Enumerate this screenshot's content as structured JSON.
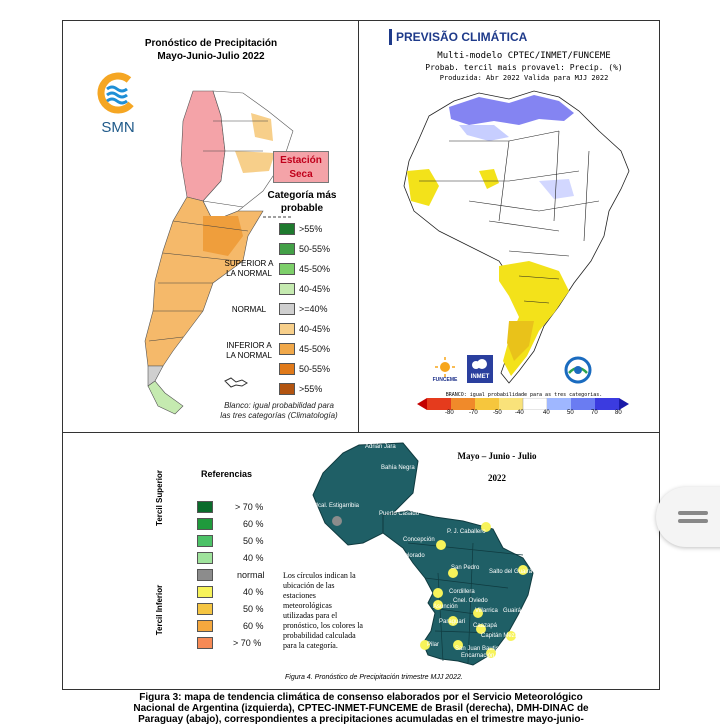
{
  "argentina": {
    "title_line1": "Pronóstico de Precipitación",
    "title_line2": "Mayo-Junio-Julio 2022",
    "logo_text": "SMN",
    "dry_season_line1": "Estación",
    "dry_season_line2": "Seca",
    "category_title_line1": "Categoría más",
    "category_title_line2": "probable",
    "group_superior_line1": "SUPERIOR A",
    "group_superior_line2": "LA NORMAL",
    "group_normal": "NORMAL",
    "group_inferior_line1": "INFERIOR A",
    "group_inferior_line2": "LA NORMAL",
    "legend": [
      {
        "label": ">55%",
        "color": "#1e7a2e"
      },
      {
        "label": "50-55%",
        "color": "#43a047"
      },
      {
        "label": "45-50%",
        "color": "#7dcf6a"
      },
      {
        "label": "40-45%",
        "color": "#c5eab0"
      },
      {
        "label": ">=40%",
        "color": "#cfcfcf"
      },
      {
        "label": "40-45%",
        "color": "#f7cf8a"
      },
      {
        "label": "45-50%",
        "color": "#f0a84a"
      },
      {
        "label": "50-55%",
        "color": "#e07a1a"
      },
      {
        "label": ">55%",
        "color": "#b25410"
      }
    ],
    "note_line1": "Blanco: igual probabilidad para",
    "note_line2": "las tres categorías (Climatología)",
    "colors": {
      "dry": "#f4a3a8",
      "below": "#f5b96a",
      "normal": "#cfcfcf",
      "above": "#c5eab0"
    }
  },
  "brazil": {
    "title": "PREVISÃO CLIMÁTICA",
    "subtitle1": "Multi-modelo CPTEC/INMET/FUNCEME",
    "subtitle2": "Probab. tercil mais provavel: Precip. (%)",
    "subtitle3": "Produzida: Abr 2022   Valida para MJJ 2022",
    "logo_funceme": "FUNCEME",
    "logo_inmet": "INMET",
    "colorbar_caption": "BRANCO: igual probabilidade para as tres categorias.",
    "colorbar_ticks": [
      "-80",
      "-70",
      "-50",
      "-40",
      "40",
      "50",
      "70",
      "80"
    ],
    "colorbar_colors": [
      "#c40000",
      "#e53b1d",
      "#f08a2a",
      "#f6c63d",
      "#ffffff",
      "#9fb7ff",
      "#6a7cf2",
      "#3b3be0",
      "#1a1aa8"
    ],
    "colors": {
      "below": "#f3e21a",
      "above": "#6f6ff0"
    }
  },
  "paraguay": {
    "title": "Mayo – Junio - Julio",
    "year": "2022",
    "refs_title": "Referencias",
    "tercil_superior": "Tercil Superior",
    "tercil_inferior": "Tercil Inferior",
    "legend": [
      {
        "label": "> 70 %",
        "color": "#0a6b2b"
      },
      {
        "label": "60 %",
        "color": "#1f9a3c"
      },
      {
        "label": "50 %",
        "color": "#4cc267"
      },
      {
        "label": "40 %",
        "color": "#9fe39c"
      },
      {
        "label": "normal",
        "color": "#8c8c8c"
      },
      {
        "label": "40  %",
        "color": "#f7f35a"
      },
      {
        "label": "50  %",
        "color": "#f5c542"
      },
      {
        "label": "60 %",
        "color": "#f5a83e"
      },
      {
        "label": "> 70 %",
        "color": "#f78a55"
      }
    ],
    "note": [
      "Los círculos indican la",
      "ubicación de las",
      "estaciones",
      "meteorológicas",
      "utilizadas para el",
      "pronóstico, los colores la",
      "probabilidad calculada",
      "para la categoría."
    ],
    "figure_caption": "Figura 4. Pronóstico de Precipitación trimestre MJJ 2022.",
    "stations": [
      {
        "name": "Adrián Jara",
        "color": "none"
      },
      {
        "name": "Bahía Negra",
        "color": "none"
      },
      {
        "name": "Mcal. Estigarribia",
        "color": "#8c8c8c"
      },
      {
        "name": "Puerto Casado",
        "color": "none"
      },
      {
        "name": "P. J. Caballero",
        "color": "#f7f35a"
      },
      {
        "name": "Concepción",
        "color": "#f7f35a"
      },
      {
        "name": "Pozo Colorado",
        "color": "none"
      },
      {
        "name": "San Pedro",
        "color": "#f7f35a"
      },
      {
        "name": "Salto del Guairá",
        "color": "#f7f35a"
      },
      {
        "name": "Cordillera",
        "color": "#f7f35a"
      },
      {
        "name": "Cnel. Oviedo",
        "color": "#f7f35a"
      },
      {
        "name": "Asunción",
        "color": "#f7f35a"
      },
      {
        "name": "Villarrica",
        "color": "#f7f35a"
      },
      {
        "name": "Guairá",
        "color": "#f7f35a"
      },
      {
        "name": "Paraguarí",
        "color": "#f7f35a"
      },
      {
        "name": "Caazapá",
        "color": "#f7f35a"
      },
      {
        "name": "Capitán Meza",
        "color": "#f7f35a"
      },
      {
        "name": "Pilar",
        "color": "#f7f35a"
      },
      {
        "name": "San Juan Bautista",
        "color": "#f7f35a"
      },
      {
        "name": "Encarnación",
        "color": "#f7f35a"
      }
    ],
    "map_color": "#1f5f66"
  },
  "caption": {
    "line1": "Figura 3: mapa de tendencia climática de consenso elaborados por el Servicio Meteorológico",
    "line2": "Nacional de Argentina (izquierda), CPTEC-INMET-FUNCEME de Brasil (derecha), DMH-DINAC de",
    "line3": "Paraguay (abajo), correspondientes a precipitaciones acumuladas en el trimestre mayo-junio-"
  }
}
